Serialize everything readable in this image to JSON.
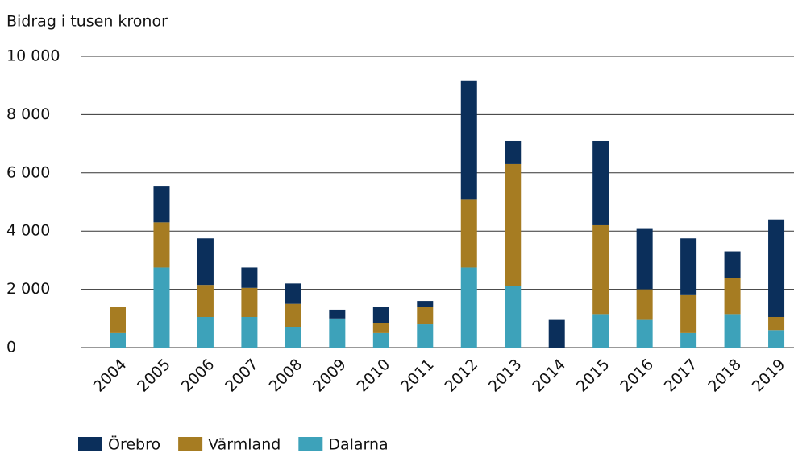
{
  "chart_data": {
    "type": "stacked_bar",
    "y_axis_label": "Bidrag i tusen kronor",
    "categories": [
      "2004",
      "2005",
      "2006",
      "2007",
      "2008",
      "2009",
      "2010",
      "2011",
      "2012",
      "2013",
      "2014",
      "2015",
      "2016",
      "2017",
      "2018",
      "2019"
    ],
    "series": [
      {
        "name": "Örebro",
        "color": "#0b2f5b",
        "values": [
          0,
          1250,
          1600,
          700,
          700,
          300,
          550,
          200,
          4050,
          800,
          950,
          2900,
          2100,
          1950,
          900,
          3350
        ]
      },
      {
        "name": "Värmland",
        "color": "#a67c22",
        "values": [
          900,
          1550,
          1100,
          1000,
          800,
          0,
          350,
          600,
          2350,
          4200,
          0,
          3050,
          1050,
          1300,
          1250,
          450
        ]
      },
      {
        "name": "Dalarna",
        "color": "#3da2ba",
        "values": [
          500,
          2750,
          1050,
          1050,
          700,
          1000,
          500,
          800,
          2750,
          2100,
          0,
          1150,
          950,
          500,
          1150,
          600
        ]
      }
    ],
    "ylim": [
      0,
      10000
    ],
    "yticks": [
      0,
      {
        "value": 2000,
        "label": "2 000"
      },
      {
        "value": 4000,
        "label": "4 000"
      },
      {
        "value": 6000,
        "label": "6 000"
      },
      {
        "value": 8000,
        "label": "8 000"
      },
      {
        "value": 10000,
        "label": "10 000"
      }
    ],
    "grid": true,
    "legend": "bottom-left"
  }
}
